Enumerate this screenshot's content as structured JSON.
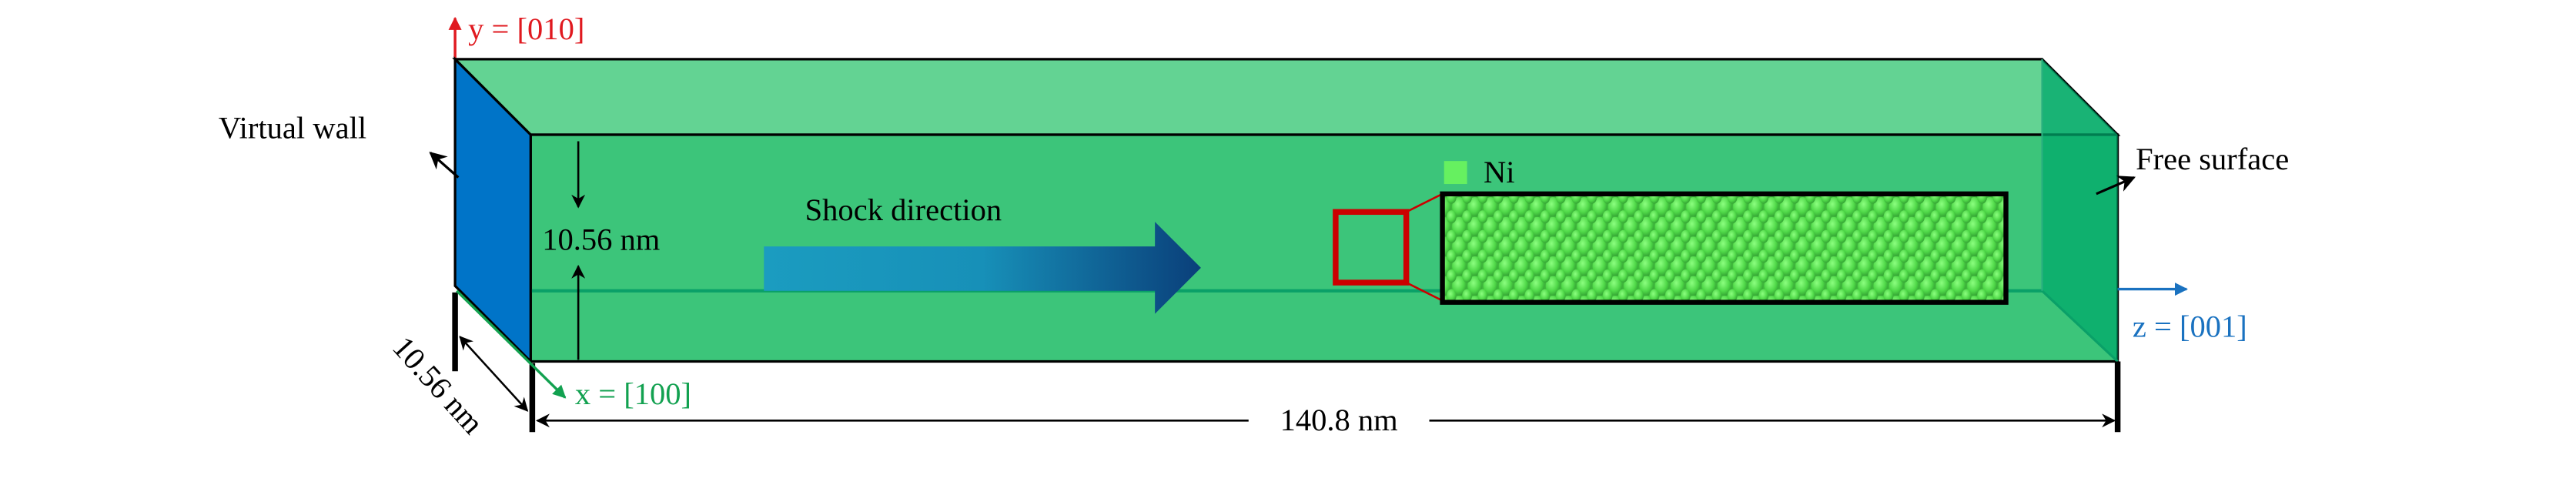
{
  "axes": {
    "y": {
      "label": "y = [010]",
      "var": "y",
      "value": "[010]",
      "color": "#e0191f"
    },
    "x": {
      "label": "x = [100]",
      "var": "x",
      "value": "[100]",
      "color": "#12a150"
    },
    "z": {
      "label": "z = [001]",
      "var": "z",
      "value": "[001]",
      "color": "#1a72c0"
    }
  },
  "labels": {
    "virtual_wall": "Virtual wall",
    "free_surface": "Free surface",
    "shock_direction": "Shock direction",
    "height": "10.56 nm",
    "depth": "10.56 nm",
    "length": "140.8 nm"
  },
  "legend": {
    "material": "Ni",
    "color": "#66f060"
  },
  "colors": {
    "top_face": "#63d393",
    "front_face": "#3cc57a",
    "virtual_wall_face": "#0074c8",
    "free_surface_face": "#00a86b",
    "zoom_box": "#cc0000",
    "shock_arrow_start": "#1b9cc0",
    "shock_arrow_end": "#0a3f7a"
  }
}
